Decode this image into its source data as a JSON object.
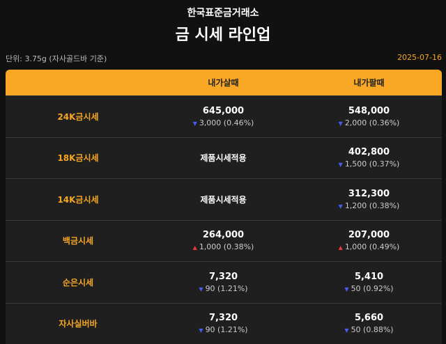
{
  "header": {
    "brand": "한국표준금거래소",
    "title": "금 시세 라인업"
  },
  "unit": "단위: 3.75g (자사골드바 기준)",
  "date": "2025-07-16",
  "colors": {
    "up": "#e53935",
    "down": "#4b5cf0"
  },
  "table": {
    "columns": [
      "내가살때",
      "내가팔때"
    ],
    "rows": [
      {
        "label": "24K금시세",
        "buy": {
          "price": "645,000",
          "change": "3,000 (0.46%)",
          "direction": "down"
        },
        "sell": {
          "price": "548,000",
          "change": "2,000 (0.36%)",
          "direction": "down"
        }
      },
      {
        "label": "18K금시세",
        "buy": {
          "note": "제품시세적용"
        },
        "sell": {
          "price": "402,800",
          "change": "1,500 (0.37%)",
          "direction": "down"
        }
      },
      {
        "label": "14K금시세",
        "buy": {
          "note": "제품시세적용"
        },
        "sell": {
          "price": "312,300",
          "change": "1,200 (0.38%)",
          "direction": "down"
        }
      },
      {
        "label": "백금시세",
        "buy": {
          "price": "264,000",
          "change": "1,000 (0.38%)",
          "direction": "up"
        },
        "sell": {
          "price": "207,000",
          "change": "1,000 (0.49%)",
          "direction": "up"
        }
      },
      {
        "label": "순은시세",
        "buy": {
          "price": "7,320",
          "change": "90 (1.21%)",
          "direction": "down"
        },
        "sell": {
          "price": "5,410",
          "change": "50 (0.92%)",
          "direction": "down"
        }
      },
      {
        "label": "자사실버바",
        "buy": {
          "price": "7,320",
          "change": "90 (1.21%)",
          "direction": "down"
        },
        "sell": {
          "price": "5,660",
          "change": "50 (0.88%)",
          "direction": "down"
        }
      }
    ]
  }
}
